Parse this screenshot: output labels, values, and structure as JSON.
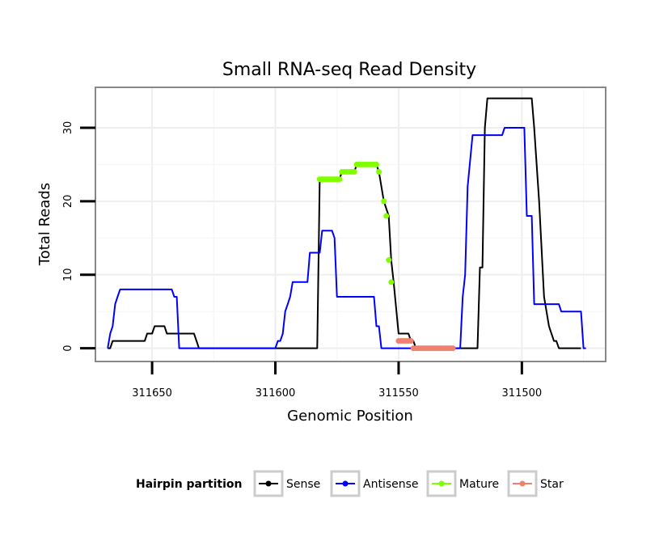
{
  "chart_data": {
    "type": "line",
    "title": "Small RNA-seq Read Density",
    "xlabel": "Genomic Position",
    "ylabel": "Total Reads",
    "xlim": [
      311673,
      311466
    ],
    "ylim": [
      -1.8,
      35.5
    ],
    "x_reversed": true,
    "x_ticks": [
      311650,
      311600,
      311550,
      311500
    ],
    "x_tick_labels": [
      "311650",
      "311600",
      "311550",
      "311500"
    ],
    "y_ticks": [
      0,
      10,
      20,
      30
    ],
    "y_tick_labels": [
      "0",
      "10",
      "20",
      "30"
    ],
    "grid": true,
    "legend": {
      "title": "Hairpin partition",
      "position": "bottom",
      "entries": [
        {
          "label": "Sense",
          "color": "#000000"
        },
        {
          "label": "Antisense",
          "color": "#0000ff"
        },
        {
          "label": "Mature",
          "color": "#7fff00"
        },
        {
          "label": "Star",
          "color": "#f08070"
        }
      ]
    },
    "series": [
      {
        "name": "Sense",
        "color": "#000000",
        "style": "line",
        "points": [
          [
            311668,
            0
          ],
          [
            311667,
            0
          ],
          [
            311666,
            1
          ],
          [
            311660,
            1
          ],
          [
            311659,
            1
          ],
          [
            311653,
            1
          ],
          [
            311652,
            2
          ],
          [
            311650,
            2
          ],
          [
            311649,
            3
          ],
          [
            311645,
            3
          ],
          [
            311644,
            2
          ],
          [
            311633,
            2
          ],
          [
            311632,
            1
          ],
          [
            311631,
            0
          ],
          [
            311583,
            0
          ],
          [
            311582,
            23
          ],
          [
            311574,
            23
          ],
          [
            311573,
            24
          ],
          [
            311568,
            24
          ],
          [
            311567,
            25
          ],
          [
            311559,
            25
          ],
          [
            311558,
            24
          ],
          [
            311556,
            20
          ],
          [
            311554,
            18
          ],
          [
            311553,
            12
          ],
          [
            311552,
            9
          ],
          [
            311550,
            2
          ],
          [
            311546,
            2
          ],
          [
            311545,
            1
          ],
          [
            311544,
            1
          ],
          [
            311543,
            0
          ],
          [
            311518,
            0
          ],
          [
            311517,
            11
          ],
          [
            311516,
            11
          ],
          [
            311515,
            30
          ],
          [
            311514,
            34
          ],
          [
            311496,
            34
          ],
          [
            311495,
            30
          ],
          [
            311493,
            20
          ],
          [
            311491,
            7
          ],
          [
            311489,
            3
          ],
          [
            311487,
            1
          ],
          [
            311486,
            1
          ],
          [
            311485,
            0
          ],
          [
            311476,
            0
          ]
        ]
      },
      {
        "name": "Antisense",
        "color": "#0000ff",
        "style": "line",
        "points": [
          [
            311668,
            0
          ],
          [
            311667,
            2
          ],
          [
            311666,
            3
          ],
          [
            311665,
            6
          ],
          [
            311664,
            7
          ],
          [
            311663,
            8
          ],
          [
            311642,
            8
          ],
          [
            311641,
            7
          ],
          [
            311640,
            7
          ],
          [
            311639,
            0
          ],
          [
            311637,
            0
          ],
          [
            311600,
            0
          ],
          [
            311599,
            1
          ],
          [
            311598,
            1
          ],
          [
            311597,
            2
          ],
          [
            311596,
            5
          ],
          [
            311595,
            6
          ],
          [
            311594,
            7
          ],
          [
            311593,
            9
          ],
          [
            311587,
            9
          ],
          [
            311586,
            13
          ],
          [
            311582,
            13
          ],
          [
            311581,
            16
          ],
          [
            311577,
            16
          ],
          [
            311576,
            15
          ],
          [
            311575,
            7
          ],
          [
            311560,
            7
          ],
          [
            311559,
            3
          ],
          [
            311558,
            3
          ],
          [
            311557,
            0
          ],
          [
            311525,
            0
          ],
          [
            311524,
            7
          ],
          [
            311523,
            10
          ],
          [
            311522,
            22
          ],
          [
            311520,
            29
          ],
          [
            311508,
            29
          ],
          [
            311507,
            30
          ],
          [
            311499,
            30
          ],
          [
            311498,
            18
          ],
          [
            311496,
            18
          ],
          [
            311495,
            6
          ],
          [
            311485,
            6
          ],
          [
            311484,
            5
          ],
          [
            311476,
            5
          ],
          [
            311475,
            0
          ],
          [
            311474,
            0
          ]
        ]
      },
      {
        "name": "Mature",
        "color": "#7fff00",
        "style": "points",
        "points": [
          [
            311582,
            23
          ],
          [
            311581,
            23
          ],
          [
            311580,
            23
          ],
          [
            311579,
            23
          ],
          [
            311578,
            23
          ],
          [
            311577,
            23
          ],
          [
            311576,
            23
          ],
          [
            311575,
            23
          ],
          [
            311574,
            23
          ],
          [
            311573,
            24
          ],
          [
            311572,
            24
          ],
          [
            311571,
            24
          ],
          [
            311570,
            24
          ],
          [
            311569,
            24
          ],
          [
            311568,
            24
          ],
          [
            311567,
            25
          ],
          [
            311566,
            25
          ],
          [
            311565,
            25
          ],
          [
            311564,
            25
          ],
          [
            311563,
            25
          ],
          [
            311562,
            25
          ],
          [
            311561,
            25
          ],
          [
            311560,
            25
          ],
          [
            311559,
            25
          ],
          [
            311558,
            24
          ],
          [
            311556,
            20
          ],
          [
            311555,
            18
          ],
          [
            311554,
            12
          ],
          [
            311553,
            9
          ]
        ]
      },
      {
        "name": "Star",
        "color": "#f08070",
        "style": "points",
        "points": [
          [
            311550,
            1
          ],
          [
            311549,
            1
          ],
          [
            311548,
            1
          ],
          [
            311547,
            1
          ],
          [
            311546,
            1
          ],
          [
            311545,
            1
          ],
          [
            311544,
            0
          ],
          [
            311543,
            0
          ],
          [
            311542,
            0
          ],
          [
            311541,
            0
          ],
          [
            311540,
            0
          ],
          [
            311539,
            0
          ],
          [
            311538,
            0
          ],
          [
            311537,
            0
          ],
          [
            311536,
            0
          ],
          [
            311535,
            0
          ],
          [
            311534,
            0
          ],
          [
            311533,
            0
          ],
          [
            311532,
            0
          ],
          [
            311531,
            0
          ],
          [
            311530,
            0
          ],
          [
            311529,
            0
          ],
          [
            311528,
            0
          ]
        ]
      }
    ]
  }
}
